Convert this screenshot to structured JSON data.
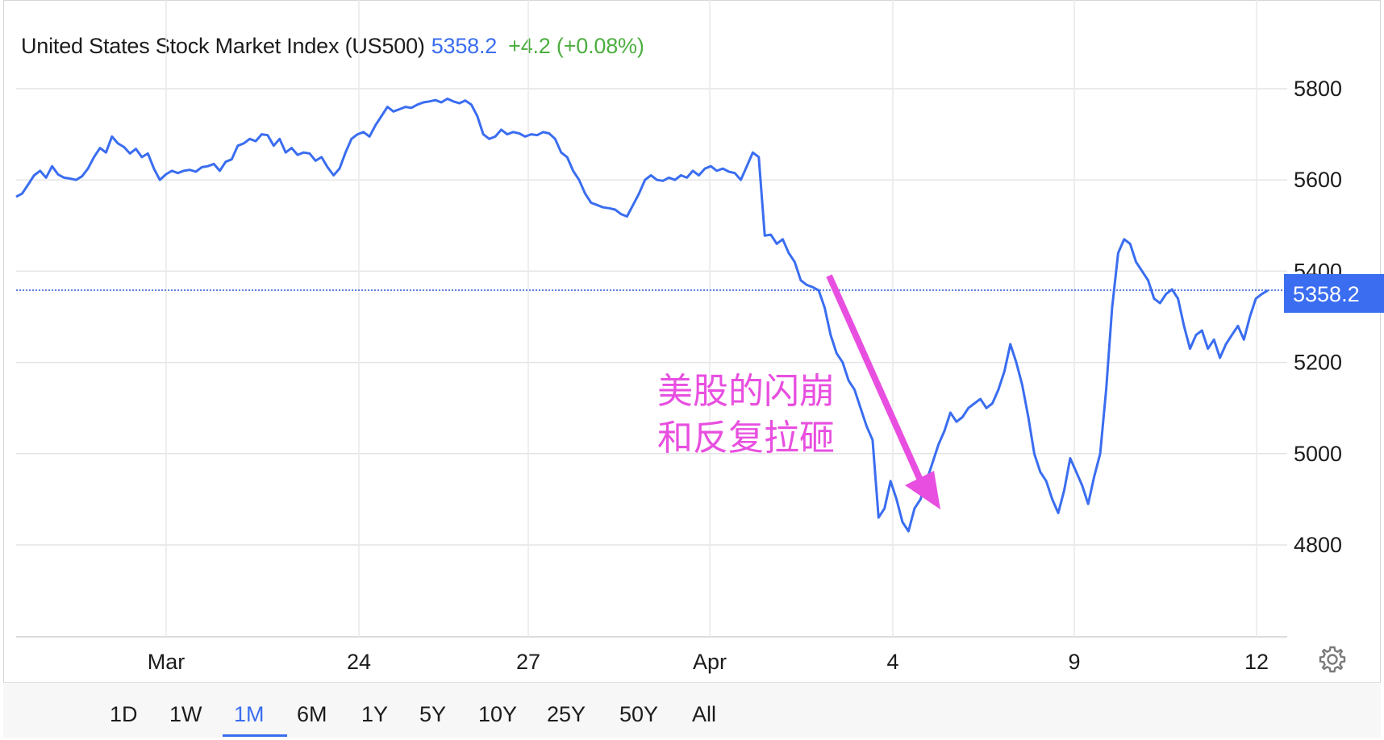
{
  "header": {
    "title": "United States Stock Market Index (US500)",
    "price": "5358.2",
    "change": "+4.2 (+0.08%)"
  },
  "annotation": {
    "line1": "美股的闪崩",
    "line2": "和反复拉砸",
    "color": "#e84fe0"
  },
  "last_value_label": "5358.2",
  "range_buttons": [
    "1D",
    "1W",
    "1M",
    "6M",
    "1Y",
    "5Y",
    "10Y",
    "25Y",
    "50Y",
    "All"
  ],
  "active_range": "1M",
  "colors": {
    "line": "#3a6df0",
    "price": "#3a6df0",
    "change": "#4cae3f",
    "annotation": "#e84fe0"
  },
  "settings_icon": "gear-icon",
  "chart_data": {
    "type": "line",
    "title": "United States Stock Market Index (US500)",
    "xlabel": "",
    "ylabel": "",
    "ylim": [
      4600,
      5800
    ],
    "yticks": [
      4800,
      5000,
      5200,
      5400,
      5600,
      5800
    ],
    "xticks": [
      "Mar",
      "24",
      "27",
      "Apr",
      "4",
      "9",
      "12"
    ],
    "last_value": 5358.2,
    "grid": true,
    "series": [
      {
        "values": [
          5563,
          5570,
          5590,
          5610,
          5620,
          5605,
          5630,
          5612,
          5605,
          5603,
          5600,
          5608,
          5625,
          5650,
          5670,
          5660,
          5695,
          5680,
          5672,
          5658,
          5668,
          5650,
          5658,
          5625,
          5600,
          5612,
          5620,
          5615,
          5620,
          5622,
          5618,
          5628,
          5630,
          5635,
          5620,
          5640,
          5645,
          5675,
          5680,
          5690,
          5685,
          5700,
          5698,
          5675,
          5690,
          5660,
          5670,
          5655,
          5660,
          5658,
          5642,
          5650,
          5628,
          5610,
          5625,
          5660,
          5690,
          5700,
          5705,
          5695,
          5720,
          5740,
          5760,
          5750,
          5755,
          5760,
          5758,
          5765,
          5770,
          5772,
          5775,
          5770,
          5778,
          5772,
          5768,
          5774,
          5765,
          5740,
          5700,
          5690,
          5695,
          5710,
          5700,
          5705,
          5702,
          5695,
          5700,
          5698,
          5705,
          5702,
          5690,
          5660,
          5650,
          5620,
          5600,
          5570,
          5550,
          5545,
          5540,
          5538,
          5535,
          5525,
          5520,
          5545,
          5570,
          5600,
          5610,
          5600,
          5598,
          5605,
          5600,
          5610,
          5605,
          5620,
          5610,
          5625,
          5630,
          5620,
          5625,
          5618,
          5615,
          5600,
          5630,
          5660,
          5650,
          5478,
          5480,
          5460,
          5470,
          5440,
          5420,
          5380,
          5370,
          5365,
          5358,
          5320,
          5260,
          5220,
          5200,
          5160,
          5140,
          5100,
          5060,
          5030,
          4860,
          4880,
          4940,
          4900,
          4850,
          4830,
          4880,
          4900,
          4940,
          4980,
          5020,
          5050,
          5090,
          5070,
          5080,
          5100,
          5110,
          5120,
          5100,
          5110,
          5140,
          5180,
          5240,
          5200,
          5150,
          5080,
          5000,
          4960,
          4940,
          4900,
          4870,
          4920,
          4990,
          4960,
          4930,
          4890,
          4950,
          5000,
          5140,
          5320,
          5440,
          5470,
          5460,
          5420,
          5400,
          5380,
          5340,
          5330,
          5350,
          5360,
          5340,
          5280,
          5230,
          5260,
          5270,
          5230,
          5250,
          5210,
          5240,
          5260,
          5280,
          5250,
          5300,
          5340,
          5350,
          5358
        ]
      }
    ]
  }
}
